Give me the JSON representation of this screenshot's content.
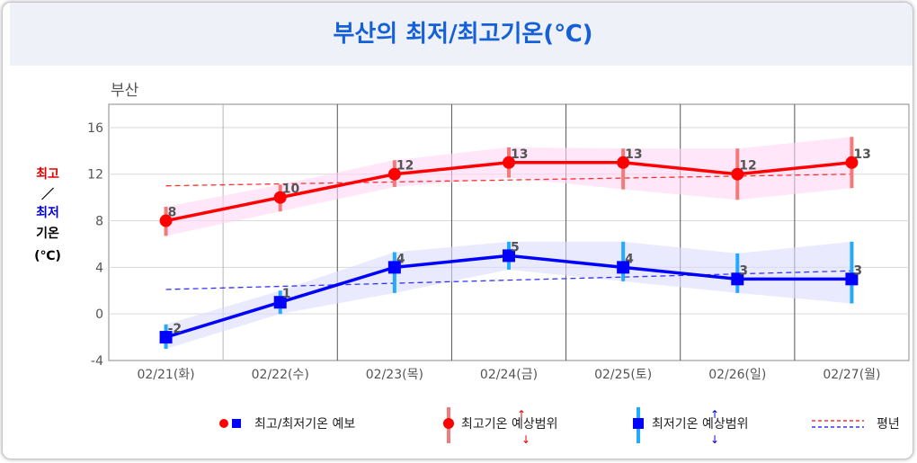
{
  "page_title": "부산의 최저/최고기온(℃)",
  "chart_data": {
    "type": "line",
    "location_label": "부산",
    "ylabel_parts": [
      {
        "text": "최고",
        "color": "#e00000"
      },
      {
        "text": "／",
        "color": "#000000"
      },
      {
        "text": "최저",
        "color": "#0000cc"
      },
      {
        "text": "기온",
        "color": "#000000"
      },
      {
        "text": "(℃)",
        "color": "#000000"
      }
    ],
    "ylim": [
      -4,
      18
    ],
    "yticks": [
      -4,
      0,
      4,
      8,
      12,
      16
    ],
    "categories": [
      "02/21(화)",
      "02/22(수)",
      "02/23(목)",
      "02/24(금)",
      "02/25(토)",
      "02/26(일)",
      "02/27(월)"
    ],
    "series": [
      {
        "name": "최고기온",
        "color": "#ff0000",
        "band_color": "#ffd6f5",
        "bar_color": "#f47a7a",
        "marker": "circle",
        "values": [
          8,
          10,
          12,
          13,
          13,
          12,
          13
        ],
        "labels": [
          "8",
          "10",
          "12",
          "13",
          "13",
          "12",
          "13"
        ],
        "range_low": [
          6.7,
          8.8,
          10.9,
          11.7,
          10.7,
          9.8,
          10.8
        ],
        "range_high": [
          9.2,
          11.1,
          13.2,
          14.3,
          14.2,
          14.2,
          15.2
        ],
        "normal": [
          11.0,
          12.0
        ],
        "normal_color": "#ff3030"
      },
      {
        "name": "최저기온",
        "color": "#0000ff",
        "band_color": "#dcdcff",
        "bar_color": "#22aaff",
        "marker": "square",
        "values": [
          -2,
          1,
          4,
          5,
          4,
          3,
          3
        ],
        "labels": [
          "-2",
          "1",
          "4",
          "5",
          "4",
          "3",
          "3"
        ],
        "range_low": [
          -3.0,
          0.0,
          1.8,
          3.8,
          2.8,
          1.8,
          0.9
        ],
        "range_high": [
          -0.9,
          2.0,
          5.3,
          6.2,
          6.2,
          5.2,
          6.2
        ],
        "normal": [
          2.1,
          3.7
        ],
        "normal_color": "#3333ff"
      }
    ],
    "legend": {
      "placement": "bottom",
      "items": [
        {
          "label": "최고/최저기온 예보"
        },
        {
          "label": "최고기온 예상범위"
        },
        {
          "label": "최저기온 예상범위"
        },
        {
          "label": "평년"
        }
      ]
    }
  }
}
